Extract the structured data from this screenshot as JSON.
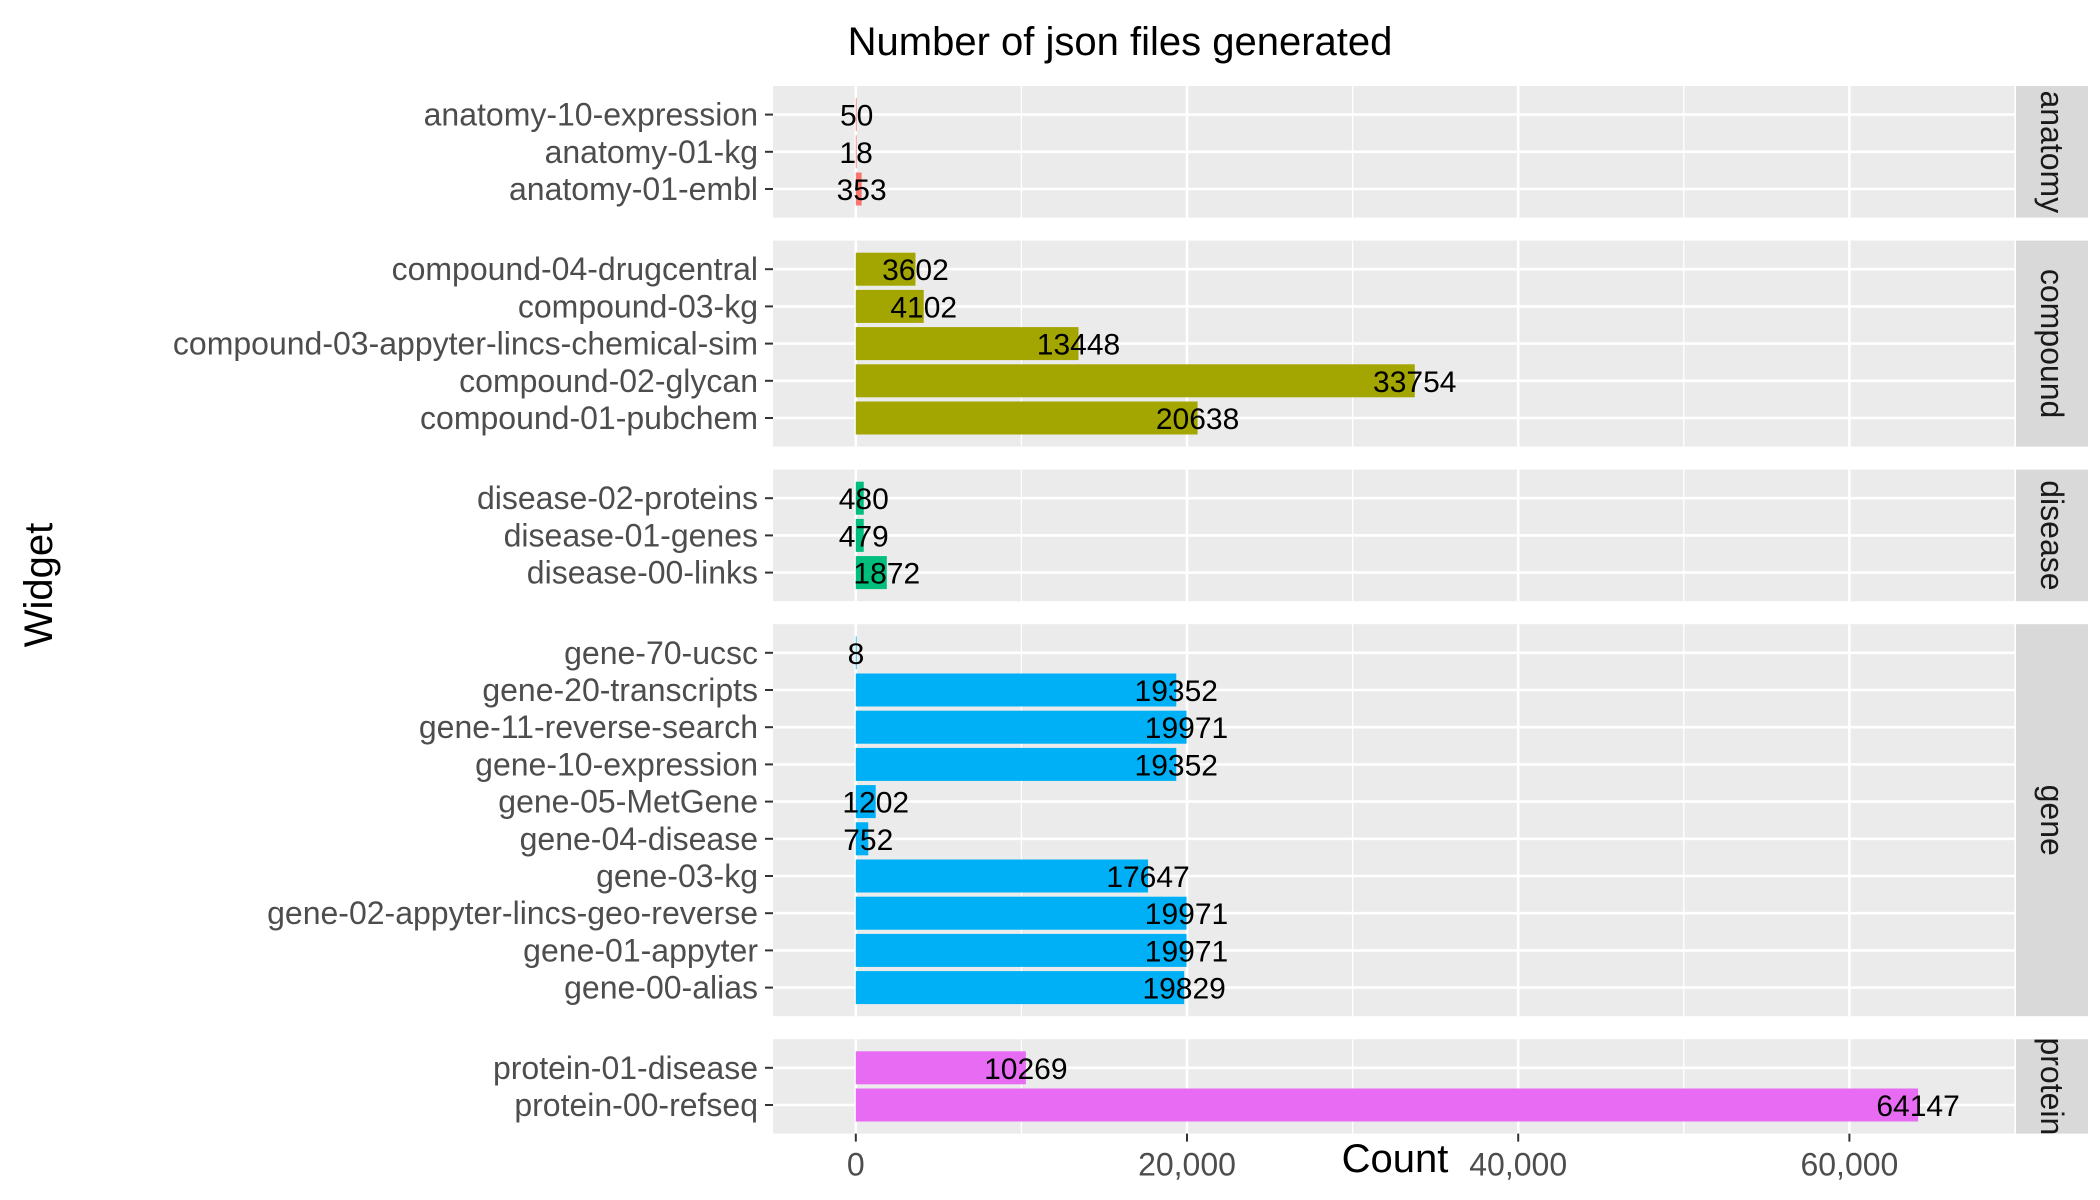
{
  "chart_data": {
    "type": "bar",
    "orientation": "horizontal",
    "title": "Number of json files generated",
    "xlabel": "Count",
    "ylabel": "Widget",
    "xlim": [
      -5000,
      70000
    ],
    "xticks": [
      0,
      20000,
      40000,
      60000
    ],
    "xtick_labels": [
      "0",
      "20,000",
      "40,000",
      "60,000"
    ],
    "grid": true,
    "facets": [
      {
        "name": "anatomy",
        "strip_label": "anatomy",
        "color": "#F8766D",
        "items": [
          {
            "label": "anatomy-10-expression",
            "value": 50
          },
          {
            "label": "anatomy-01-kg",
            "value": 18
          },
          {
            "label": "anatomy-01-embl",
            "value": 353
          }
        ]
      },
      {
        "name": "compound",
        "strip_label": "compound",
        "color": "#A3A500",
        "items": [
          {
            "label": "compound-04-drugcentral",
            "value": 3602
          },
          {
            "label": "compound-03-kg",
            "value": 4102
          },
          {
            "label": "compound-03-appyter-lincs-chemical-sim",
            "value": 13448
          },
          {
            "label": "compound-02-glycan",
            "value": 33754
          },
          {
            "label": "compound-01-pubchem",
            "value": 20638
          }
        ]
      },
      {
        "name": "disease",
        "strip_label": "disease",
        "color": "#00BF7D",
        "items": [
          {
            "label": "disease-02-proteins",
            "value": 480
          },
          {
            "label": "disease-01-genes",
            "value": 479
          },
          {
            "label": "disease-00-links",
            "value": 1872
          }
        ]
      },
      {
        "name": "gene",
        "strip_label": "gene",
        "color": "#00B0F6",
        "items": [
          {
            "label": "gene-70-ucsc",
            "value": 8
          },
          {
            "label": "gene-20-transcripts",
            "value": 19352
          },
          {
            "label": "gene-11-reverse-search",
            "value": 19971
          },
          {
            "label": "gene-10-expression",
            "value": 19352
          },
          {
            "label": "gene-05-MetGene",
            "value": 1202
          },
          {
            "label": "gene-04-disease",
            "value": 752
          },
          {
            "label": "gene-03-kg",
            "value": 17647
          },
          {
            "label": "gene-02-appyter-lincs-geo-reverse",
            "value": 19971
          },
          {
            "label": "gene-01-appyter",
            "value": 19971
          },
          {
            "label": "gene-00-alias",
            "value": 19829
          }
        ]
      },
      {
        "name": "protein",
        "strip_label": "protein",
        "color": "#E76BF3",
        "items": [
          {
            "label": "protein-01-disease",
            "value": 10269
          },
          {
            "label": "protein-00-refseq",
            "value": 64147
          }
        ]
      }
    ]
  }
}
